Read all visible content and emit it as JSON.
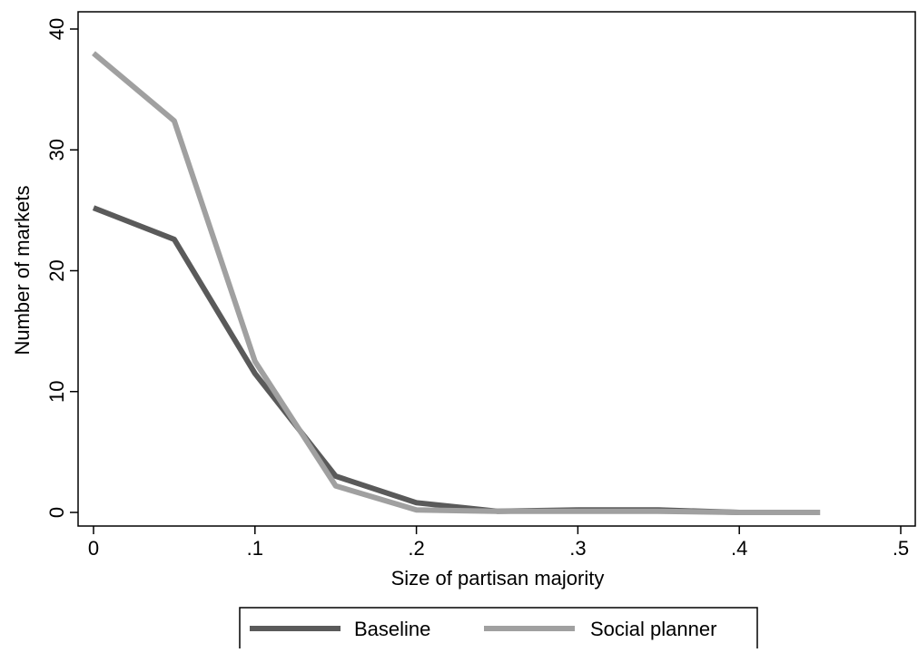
{
  "chart_data": {
    "type": "line",
    "title": "",
    "xlabel": "Size of partisan majority",
    "ylabel": "Number of markets",
    "xlim": [
      0,
      0.5
    ],
    "ylim": [
      0,
      40
    ],
    "x_ticks": [
      0,
      0.1,
      0.2,
      0.3,
      0.4,
      0.5
    ],
    "x_tick_labels": [
      "0",
      ".1",
      ".2",
      ".3",
      ".4",
      ".5"
    ],
    "y_ticks": [
      0,
      10,
      20,
      30,
      40
    ],
    "y_tick_labels": [
      "0",
      "10",
      "20",
      "30",
      "40"
    ],
    "grid": false,
    "legend_position": "bottom",
    "x": [
      0,
      0.05,
      0.1,
      0.15,
      0.2,
      0.25,
      0.3,
      0.35,
      0.4,
      0.45
    ],
    "series": [
      {
        "name": "Baseline",
        "color": "#5a5a5a",
        "values": [
          25.2,
          22.6,
          11.5,
          3.0,
          0.8,
          0.1,
          0.2,
          0.2,
          0.0,
          0.0
        ]
      },
      {
        "name": "Social planner",
        "color": "#a0a0a0",
        "values": [
          38.0,
          32.4,
          12.5,
          2.2,
          0.2,
          0.1,
          0.1,
          0.1,
          0.0,
          0.0
        ]
      }
    ]
  }
}
